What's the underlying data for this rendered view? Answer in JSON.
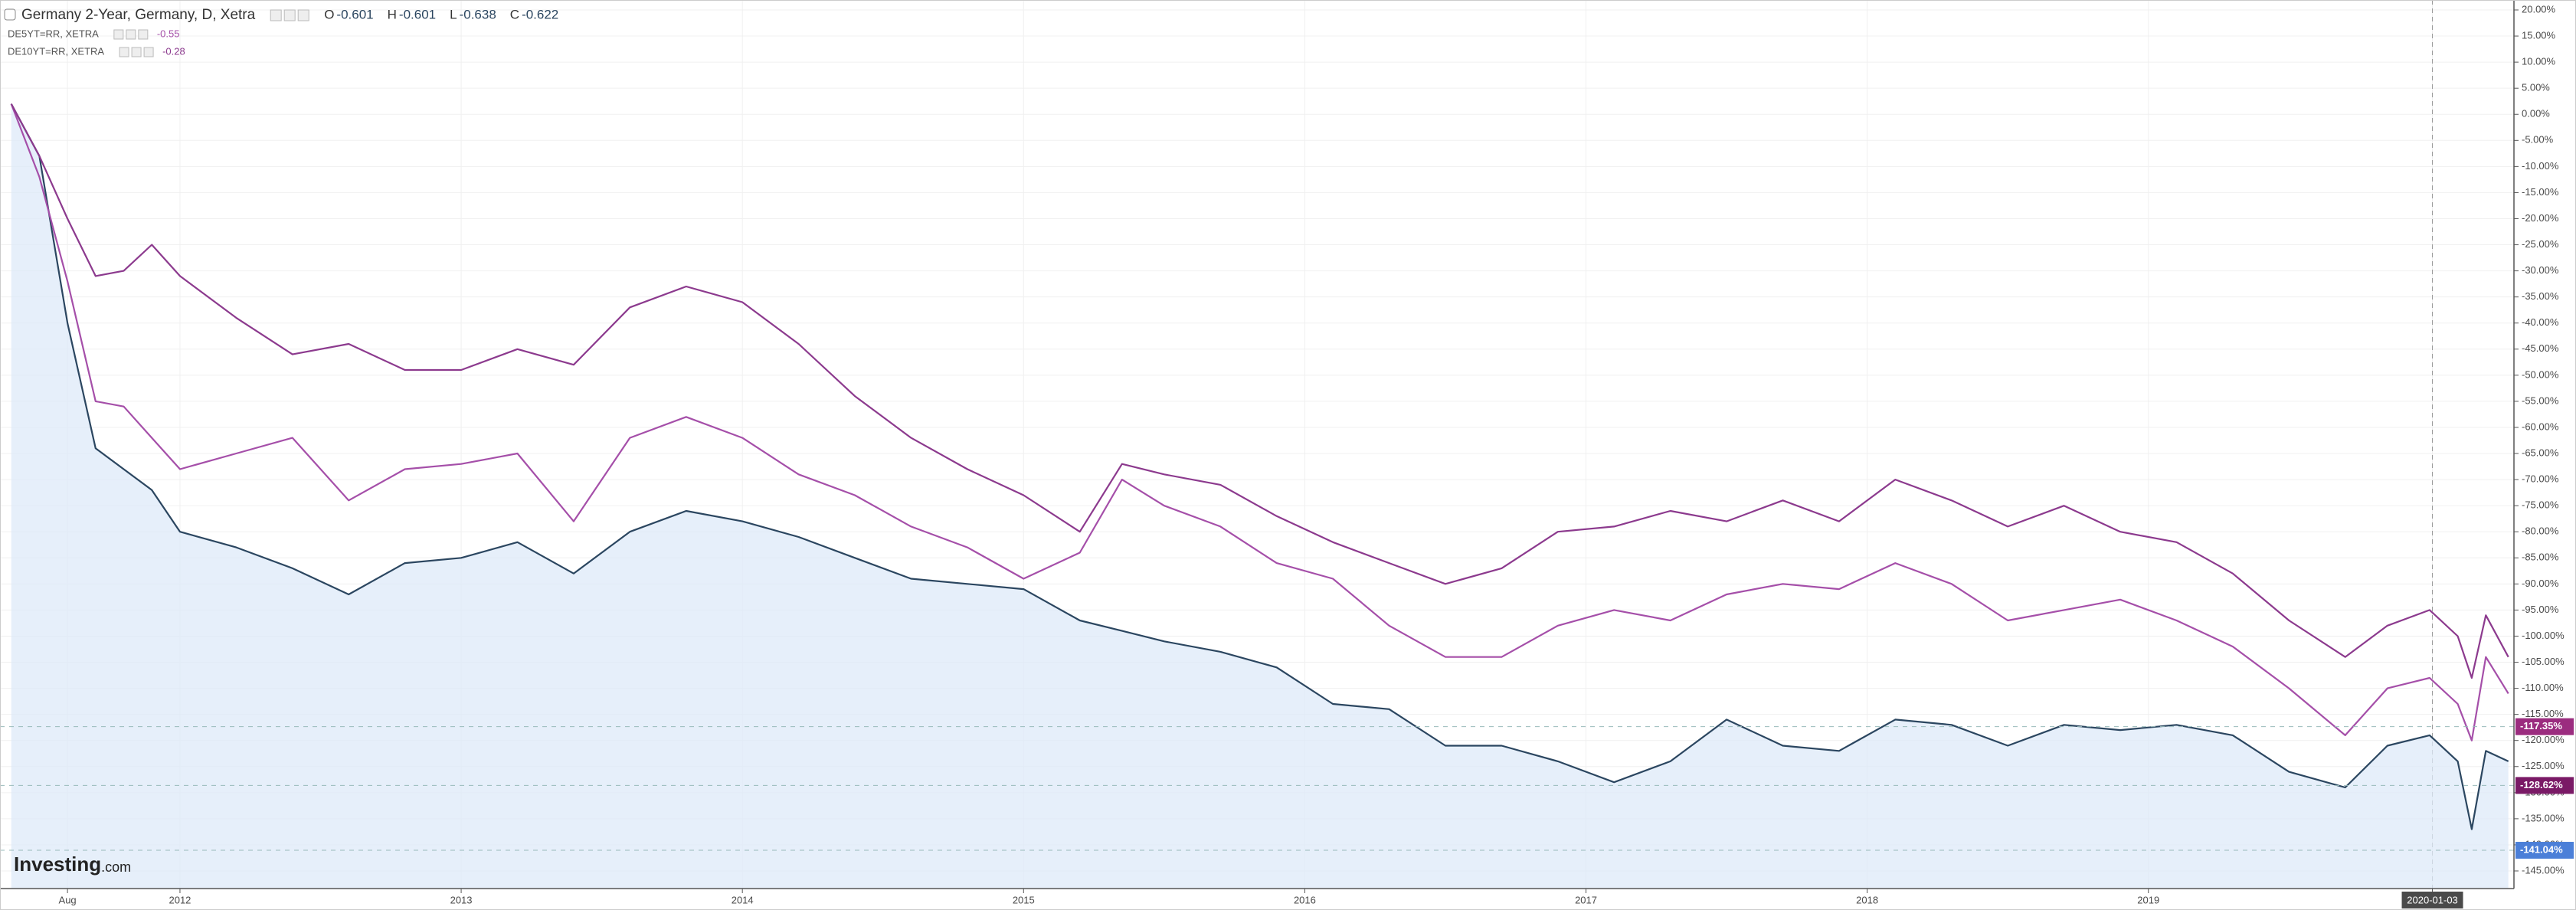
{
  "chart_data": {
    "type": "line",
    "ohlc": [
      {
        "label": "O",
        "value": -0.601
      },
      {
        "label": "H",
        "value": -0.601
      },
      {
        "label": "L",
        "value": -0.638
      },
      {
        "label": "C",
        "value": -0.622
      }
    ],
    "x": [
      2011.4,
      2011.5,
      2011.6,
      2011.7,
      2011.8,
      2011.9,
      2012.0,
      2012.2,
      2012.4,
      2012.6,
      2012.8,
      2013.0,
      2013.2,
      2013.4,
      2013.6,
      2013.8,
      2014.0,
      2014.2,
      2014.4,
      2014.6,
      2014.8,
      2015.0,
      2015.2,
      2015.35,
      2015.5,
      2015.7,
      2015.9,
      2016.1,
      2016.3,
      2016.5,
      2016.7,
      2016.9,
      2017.1,
      2017.3,
      2017.5,
      2017.7,
      2017.9,
      2018.1,
      2018.3,
      2018.5,
      2018.7,
      2018.9,
      2019.1,
      2019.3,
      2019.5,
      2019.7,
      2019.85,
      2020.0,
      2020.1,
      2020.15,
      2020.2,
      2020.28
    ],
    "series": [
      {
        "name": "Germany 2-Year, Germany, D, Xetra",
        "color": "#2b4660",
        "area": true,
        "values": [
          2,
          -8,
          -40,
          -64,
          -68,
          -72,
          -80,
          -83,
          -87,
          -92,
          -86,
          -85,
          -82,
          -88,
          -80,
          -76,
          -78,
          -81,
          -85,
          -89,
          -90,
          -91,
          -97,
          -99,
          -101,
          -103,
          -106,
          -113,
          -114,
          -121,
          -121,
          -124,
          -128,
          -124,
          -116,
          -121,
          -122,
          -116,
          -117,
          -121,
          -117,
          -118,
          -117,
          -119,
          -126,
          -129,
          -121,
          -119,
          -124,
          -137,
          -122,
          -124
        ]
      },
      {
        "name": "DE5YT=RR, XETRA",
        "last": -0.55,
        "color": "#a54fa9",
        "values": [
          2,
          -12,
          -32,
          -55,
          -56,
          -62,
          -68,
          -65,
          -62,
          -74,
          -68,
          -67,
          -65,
          -78,
          -62,
          -58,
          -62,
          -69,
          -73,
          -79,
          -83,
          -89,
          -84,
          -70,
          -75,
          -79,
          -86,
          -89,
          -98,
          -104,
          -104,
          -98,
          -95,
          -97,
          -92,
          -90,
          -91,
          -86,
          -90,
          -97,
          -95,
          -93,
          -97,
          -102,
          -110,
          -119,
          -110,
          -108,
          -113,
          -120,
          -104,
          -111
        ]
      },
      {
        "name": "DE10YT=RR, XETRA",
        "last": -0.28,
        "color": "#8c3a8e",
        "values": [
          2,
          -8,
          -20,
          -31,
          -30,
          -25,
          -31,
          -39,
          -46,
          -44,
          -49,
          -49,
          -45,
          -48,
          -37,
          -33,
          -36,
          -44,
          -54,
          -62,
          -68,
          -73,
          -80,
          -67,
          -69,
          -71,
          -77,
          -82,
          -86,
          -90,
          -87,
          -80,
          -79,
          -76,
          -78,
          -74,
          -78,
          -70,
          -74,
          -79,
          -75,
          -80,
          -82,
          -88,
          -97,
          -104,
          -98,
          -95,
          -100,
          -108,
          -96,
          -104
        ]
      }
    ],
    "xlim": [
      2011.36,
      2020.3
    ],
    "xticks": [
      {
        "value": 2011.6,
        "label": "Aug"
      },
      2012,
      2013,
      2014,
      2015,
      2016,
      2017,
      2018,
      2019,
      {
        "value": 2020.01,
        "label": "2020-01-03"
      }
    ],
    "ylim": [
      20,
      -145
    ],
    "yticks": [
      {
        "value": 20,
        "label": "20.00%"
      },
      {
        "value": 15,
        "label": "15.00%"
      },
      {
        "value": 10,
        "label": "10.00%"
      },
      {
        "value": 5,
        "label": "5.00%"
      },
      {
        "value": 0,
        "label": "0.00%"
      },
      {
        "value": -5,
        "label": "-5.00%"
      },
      {
        "value": -10,
        "label": "-10.00%"
      },
      {
        "value": -15,
        "label": "-15.00%"
      },
      {
        "value": -20,
        "label": "-20.00%"
      },
      {
        "value": -25,
        "label": "-25.00%"
      },
      {
        "value": -30,
        "label": "-30.00%"
      },
      {
        "value": -35,
        "label": "-35.00%"
      },
      {
        "value": -40,
        "label": "-40.00%"
      },
      {
        "value": -45,
        "label": "-45.00%"
      },
      {
        "value": -50,
        "label": "-50.00%"
      },
      {
        "value": -55,
        "label": "-55.00%"
      },
      {
        "value": -60,
        "label": "-60.00%"
      },
      {
        "value": -65,
        "label": "-65.00%"
      },
      {
        "value": -70,
        "label": "-70.00%"
      },
      {
        "value": -75,
        "label": "-75.00%"
      },
      {
        "value": -80,
        "label": "-80.00%"
      },
      {
        "value": -85,
        "label": "-85.00%"
      },
      {
        "value": -90,
        "label": "-90.00%"
      },
      {
        "value": -95,
        "label": "-95.00%"
      },
      {
        "value": -100,
        "label": "-100.00%"
      },
      {
        "value": -105,
        "label": "-105.00%"
      },
      {
        "value": -110,
        "label": "-110.00%"
      },
      {
        "value": -115,
        "label": "-115.00%"
      },
      {
        "value": -120,
        "label": "-120.00%"
      },
      {
        "value": -125,
        "label": "-125.00%"
      },
      {
        "value": -130,
        "label": "-130.00%"
      },
      {
        "value": -135,
        "label": "-135.00%"
      },
      {
        "value": -140,
        "label": "-140.00%"
      },
      {
        "value": -145,
        "label": "-145.00%"
      }
    ],
    "price_labels": [
      {
        "value": -117.35,
        "label": "-117.35%",
        "color": "#9b2c7f"
      },
      {
        "value": -128.62,
        "label": "-128.62%",
        "color": "#7a1a66"
      },
      {
        "value": -141.04,
        "label": "-141.04%",
        "color": "#4b7fd8"
      }
    ],
    "grid": true,
    "watermark": [
      "Investing",
      ".com"
    ]
  }
}
